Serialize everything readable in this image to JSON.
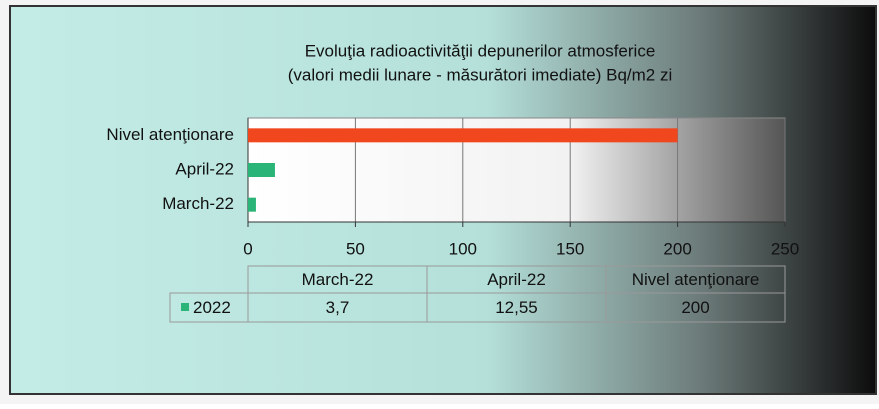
{
  "chart_data": {
    "type": "barh",
    "title": [
      "Evoluţia radioactivităţii depunerilor atmosferice",
      "(valori medii lunare - măsurători imediate) Bq/m2 zi"
    ],
    "categories": [
      "March-22",
      "April-22",
      "Nivel atenţionare"
    ],
    "series": [
      {
        "name": "2022",
        "color": "#2bb477",
        "colors": [
          "#2bb477",
          "#2bb477",
          "#f0471e"
        ],
        "values": [
          3.7,
          12.55,
          200
        ],
        "value_labels": [
          "3,7",
          "12,55",
          "200"
        ]
      }
    ],
    "xlim": [
      0,
      250
    ],
    "xticks": [
      0,
      50,
      100,
      150,
      200,
      250
    ],
    "grid": true
  }
}
